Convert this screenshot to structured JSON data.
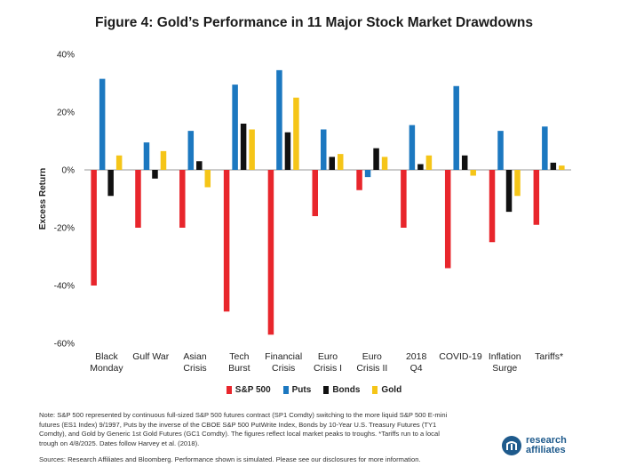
{
  "title": "Figure 4: Gold’s Performance in 11 Major Stock Market Drawdowns",
  "chart_data": {
    "type": "bar",
    "ylabel": "Excess Return",
    "ylim": [
      -60,
      40
    ],
    "yticks": [
      40,
      20,
      0,
      -20,
      -40,
      -60
    ],
    "ytick_labels": [
      "40%",
      "20%",
      "0%",
      "-20%",
      "-40%",
      "-60%"
    ],
    "grid": false,
    "legend_position": "bottom",
    "categories": [
      [
        "Black",
        "Monday"
      ],
      [
        "Gulf War"
      ],
      [
        "Asian",
        "Crisis"
      ],
      [
        "Tech",
        "Burst"
      ],
      [
        "Financial",
        "Crisis"
      ],
      [
        "Euro",
        "Crisis I"
      ],
      [
        "Euro",
        "Crisis II"
      ],
      [
        "2018",
        "Q4"
      ],
      [
        "COVID-19"
      ],
      [
        "Inflation",
        "Surge"
      ],
      [
        "Tariffs*"
      ]
    ],
    "series": [
      {
        "name": "S&P 500",
        "color": "#e8262c",
        "values": [
          -40,
          -20,
          -20,
          -49,
          -57,
          -16,
          -7,
          -20,
          -34,
          -25,
          -19
        ]
      },
      {
        "name": "Puts",
        "color": "#1c78c0",
        "values": [
          31.5,
          9.5,
          13.5,
          29.5,
          34.5,
          14,
          -2.5,
          15.5,
          29,
          13.5,
          15
        ]
      },
      {
        "name": "Bonds",
        "color": "#111111",
        "values": [
          -9,
          -3,
          3,
          16,
          13,
          4.5,
          7.5,
          2,
          5,
          -14.5,
          2.5
        ]
      },
      {
        "name": "Gold",
        "color": "#f5c518",
        "values": [
          5,
          6.5,
          -6,
          14,
          25,
          5.5,
          4.5,
          5,
          -2,
          -9,
          1.5
        ]
      }
    ]
  },
  "note": "Note: S&P 500 represented by continuous full-sized S&P 500 futures contract (SP1 Comdty) switching to the more liquid S&P 500 E-mini futures (ES1 Index) 9/1997, Puts by the inverse of the CBOE S&P 500 PutWrite Index, Bonds by 10-Year U.S. Treasury Futures (TY1 Comdty), and Gold by Generic 1st Gold Futures (GC1 Comdty). The figures reflect local market peaks to troughs. *Tariffs run to a local trough on 4/8/2025. Dates follow Harvey et al. (2018).",
  "sources": "Sources: Research Affiliates and Bloomberg. Performance shown is simulated. Please see our disclosures for more information.",
  "logo": {
    "line1": "research",
    "line2": "affiliates"
  }
}
